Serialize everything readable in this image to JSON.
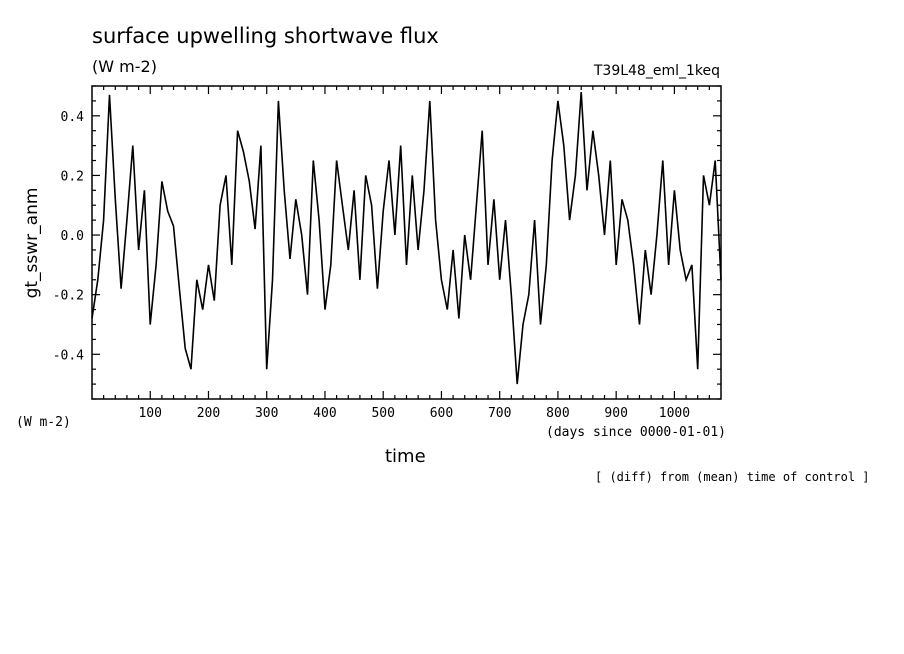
{
  "chart_data": {
    "type": "line",
    "title": "surface upwelling shortwave flux",
    "units": "(W m-2)",
    "run_label": "T39L48_eml_1keq",
    "xlabel": "time",
    "x_units": "(days since 0000-01-01)",
    "ylabel": "gt_sswr_anm",
    "y_units": "(W m-2)",
    "footnote": "[ (diff) from (mean) time of control ]",
    "xlim": [
      0,
      1080
    ],
    "ylim": [
      -0.55,
      0.5
    ],
    "x_ticks": [
      100,
      200,
      300,
      400,
      500,
      600,
      700,
      800,
      900,
      1000
    ],
    "x_tick_labels": [
      "100",
      "200",
      "300",
      "400",
      "500",
      "600",
      "700",
      "800",
      "900",
      "1000"
    ],
    "y_ticks": [
      -0.4,
      -0.2,
      0.0,
      0.2,
      0.4
    ],
    "y_tick_labels": [
      "-0.4",
      "-0.2",
      "0.0",
      "0.2",
      "0.4"
    ],
    "grid": false,
    "series": [
      {
        "x": [
          0,
          10,
          20,
          30,
          40,
          50,
          60,
          70,
          80,
          90,
          100,
          110,
          120,
          130,
          140,
          150,
          160,
          170,
          180,
          190,
          200,
          210,
          220,
          230,
          240,
          250,
          260,
          270,
          280,
          290,
          300,
          310,
          320,
          330,
          340,
          350,
          360,
          370,
          380,
          390,
          400,
          410,
          420,
          430,
          440,
          450,
          460,
          470,
          480,
          490,
          500,
          510,
          520,
          530,
          540,
          550,
          560,
          570,
          580,
          590,
          600,
          610,
          620,
          630,
          640,
          650,
          660,
          670,
          680,
          690,
          700,
          710,
          720,
          730,
          740,
          750,
          760,
          770,
          780,
          790,
          800,
          810,
          820,
          830,
          840,
          850,
          860,
          870,
          880,
          890,
          900,
          910,
          920,
          930,
          940,
          950,
          960,
          970,
          980,
          990,
          1000,
          1010,
          1020,
          1030,
          1040,
          1050,
          1060,
          1070,
          1080
        ],
        "y": [
          -0.28,
          -0.15,
          0.05,
          0.47,
          0.12,
          -0.18,
          0.05,
          0.3,
          -0.05,
          0.15,
          -0.3,
          -0.1,
          0.18,
          0.08,
          0.03,
          -0.18,
          -0.38,
          -0.45,
          -0.15,
          -0.25,
          -0.1,
          -0.22,
          0.1,
          0.2,
          -0.1,
          0.35,
          0.28,
          0.18,
          0.02,
          0.3,
          -0.45,
          -0.15,
          0.45,
          0.15,
          -0.08,
          0.12,
          0.0,
          -0.2,
          0.25,
          0.05,
          -0.25,
          -0.1,
          0.25,
          0.1,
          -0.05,
          0.15,
          -0.15,
          0.2,
          0.1,
          -0.18,
          0.08,
          0.25,
          0.0,
          0.3,
          -0.1,
          0.2,
          -0.05,
          0.15,
          0.45,
          0.05,
          -0.15,
          -0.25,
          -0.05,
          -0.28,
          0.0,
          -0.15,
          0.1,
          0.35,
          -0.1,
          0.12,
          -0.15,
          0.05,
          -0.2,
          -0.5,
          -0.3,
          -0.2,
          0.05,
          -0.3,
          -0.1,
          0.25,
          0.45,
          0.3,
          0.05,
          0.2,
          0.48,
          0.15,
          0.35,
          0.2,
          0.0,
          0.25,
          -0.1,
          0.12,
          0.05,
          -0.1,
          -0.3,
          -0.05,
          -0.2,
          0.0,
          0.25,
          -0.1,
          0.15,
          -0.05,
          -0.15,
          -0.1,
          -0.45,
          0.2,
          0.1,
          0.25,
          -0.15
        ]
      }
    ]
  }
}
